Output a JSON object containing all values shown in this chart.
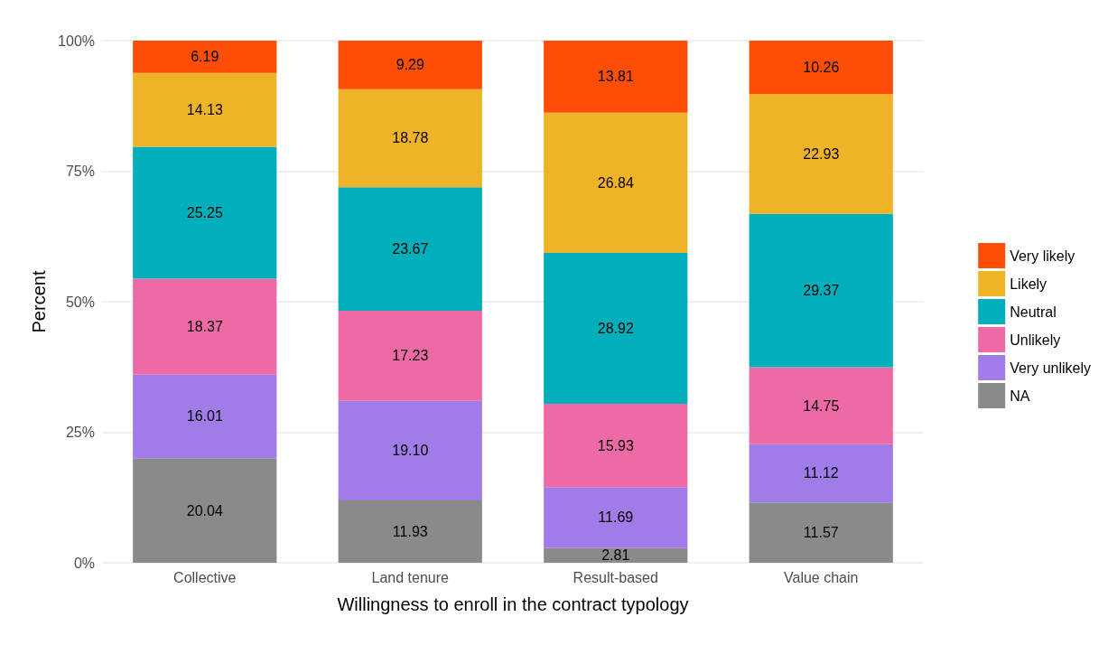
{
  "chart_data": {
    "type": "bar",
    "stacked": true,
    "xlabel": "Willingness to enroll in the contract typology",
    "ylabel": "Percent",
    "categories": [
      "Collective",
      "Land tenure",
      "Result-based",
      "Value chain"
    ],
    "series": [
      {
        "name": "NA",
        "color": "#8a8a8a",
        "values": [
          20.04,
          11.93,
          2.81,
          11.57
        ],
        "value_labels": [
          "20.04",
          "11.93",
          "2.81",
          "11.57"
        ]
      },
      {
        "name": "Very unlikely",
        "color": "#a07ce8",
        "values": [
          16.01,
          19.1,
          11.69,
          11.12
        ],
        "value_labels": [
          "16.01",
          "19.10",
          "11.69",
          "11.12"
        ]
      },
      {
        "name": "Unlikely",
        "color": "#ee6aa7",
        "values": [
          18.37,
          17.23,
          15.93,
          14.75
        ],
        "value_labels": [
          "18.37",
          "17.23",
          "15.93",
          "14.75"
        ]
      },
      {
        "name": "Neutral",
        "color": "#00afbb",
        "values": [
          25.25,
          23.67,
          28.92,
          29.37
        ],
        "value_labels": [
          "25.25",
          "23.67",
          "28.92",
          "29.37"
        ]
      },
      {
        "name": "Likely",
        "color": "#efb327",
        "values": [
          14.13,
          18.78,
          26.84,
          22.93
        ],
        "value_labels": [
          "14.13",
          "18.78",
          "26.84",
          "22.93"
        ]
      },
      {
        "name": "Very likely",
        "color": "#fc4e07",
        "values": [
          6.19,
          9.29,
          13.81,
          10.26
        ],
        "value_labels": [
          "6.19",
          "9.29",
          "13.81",
          "10.26"
        ]
      }
    ],
    "ylim": [
      0,
      100
    ],
    "yticks": [
      {
        "value": 0,
        "label": "0%"
      },
      {
        "value": 25,
        "label": "25%"
      },
      {
        "value": 50,
        "label": "50%"
      },
      {
        "value": 75,
        "label": "75%"
      },
      {
        "value": 100,
        "label": "100%"
      }
    ],
    "grid": "y",
    "legend": "right"
  }
}
